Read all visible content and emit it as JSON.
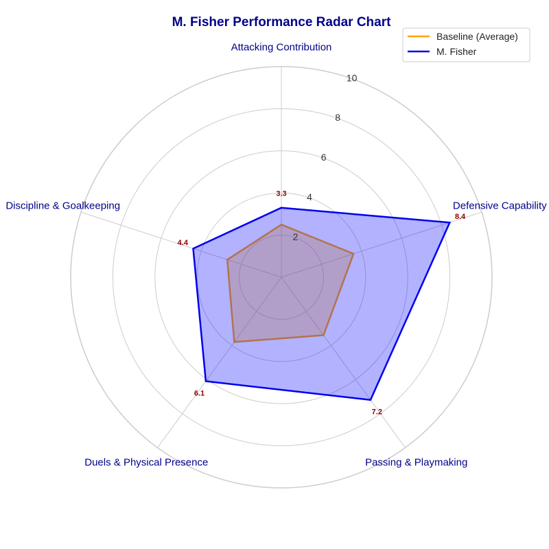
{
  "chart_data": {
    "type": "radar",
    "title": "M. Fisher Performance Radar Chart",
    "axes": [
      "Attacking Contribution",
      "Defensive Capability",
      "Passing & Playmaking",
      "Duels & Physical Presence",
      "Discipline & Goalkeeping"
    ],
    "radial_ticks": [
      "2",
      "4",
      "6",
      "8",
      "10"
    ],
    "radial_tick_values": [
      2,
      4,
      6,
      8,
      10
    ],
    "rlim": [
      0,
      10
    ],
    "grid": true,
    "legend_position": "top-right",
    "series": [
      {
        "name": "Baseline (Average)",
        "values": [
          2.5,
          3.6,
          3.4,
          3.8,
          2.7
        ],
        "color": "#ffa500",
        "fill": "#ffa500"
      },
      {
        "name": "M. Fisher",
        "values": [
          3.3,
          8.4,
          7.2,
          6.1,
          4.4
        ],
        "color": "#0000ee",
        "fill": "#0000ff"
      }
    ],
    "data_labels": [
      "3.3",
      "8.4",
      "7.2",
      "6.1",
      "4.4"
    ]
  }
}
